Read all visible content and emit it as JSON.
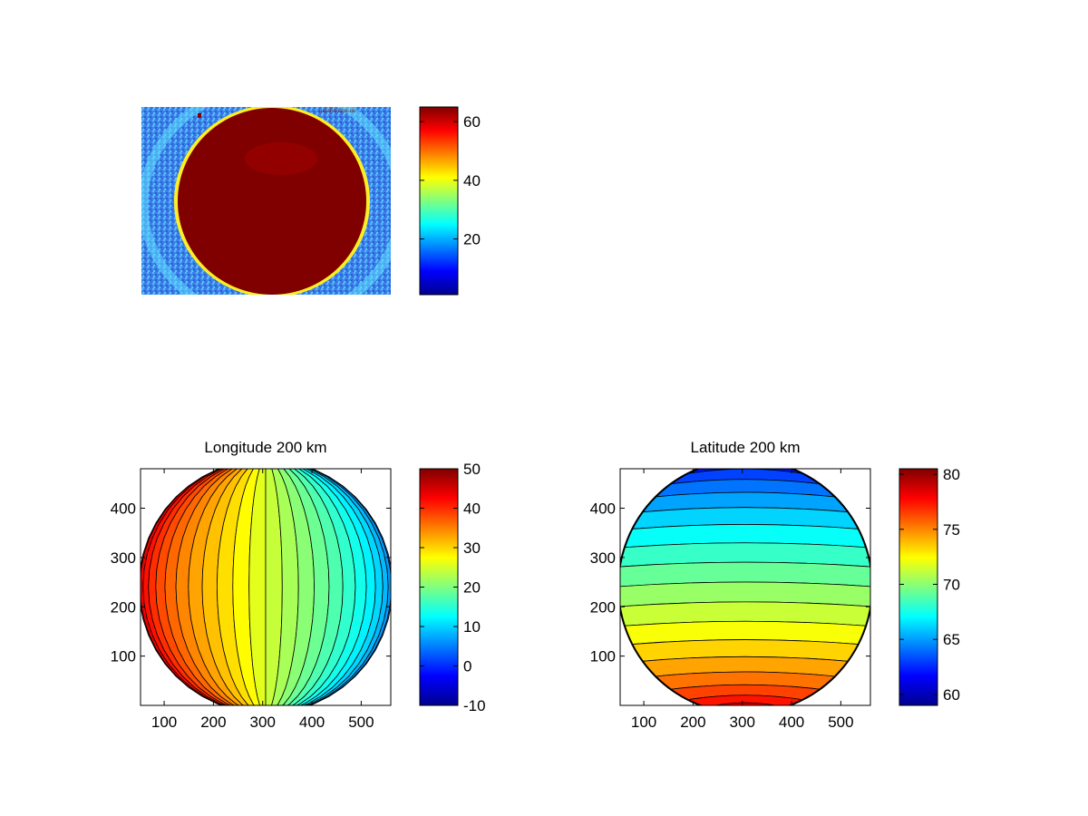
{
  "figure": {
    "background": "#ffffff"
  },
  "chart_data": [
    {
      "type": "heatmap",
      "panel": "top-left",
      "title": "",
      "description_mode": "image",
      "colorbar": {
        "min": 1,
        "max": 65,
        "ticks": [
          20,
          40,
          60
        ]
      },
      "overlay_text": "uas-Fo-Cne-ue",
      "axis_visible": false
    },
    {
      "type": "heatmap",
      "panel": "bottom-left",
      "title": "Longitude 200 km",
      "x_ticks": [
        100,
        200,
        300,
        400,
        500
      ],
      "y_ticks": [
        100,
        200,
        300,
        400
      ],
      "xlim": [
        52,
        560
      ],
      "ylim": [
        0,
        480
      ],
      "colorbar": {
        "min": -10,
        "max": 50,
        "ticks": [
          -10,
          0,
          10,
          20,
          30,
          40,
          50
        ]
      },
      "field": "longitude",
      "center_value": 20,
      "grid": false
    },
    {
      "type": "heatmap",
      "panel": "bottom-right",
      "title": "Latitude 200 km",
      "x_ticks": [
        100,
        200,
        300,
        400,
        500
      ],
      "y_ticks": [
        100,
        200,
        300,
        400
      ],
      "xlim": [
        52,
        560
      ],
      "ylim": [
        0,
        480
      ],
      "colorbar": {
        "min": 59,
        "max": 80.5,
        "ticks": [
          60,
          65,
          70,
          75,
          80
        ]
      },
      "field": "latitude",
      "grid": false
    }
  ],
  "colormap": "jet"
}
